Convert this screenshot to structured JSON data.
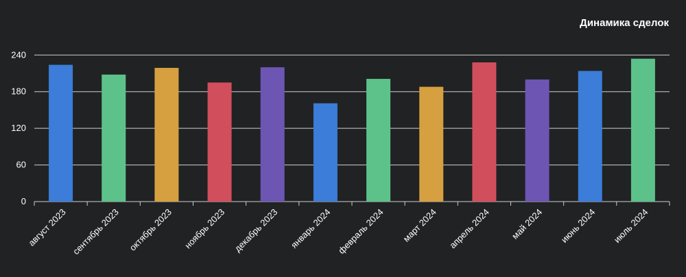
{
  "chart_data": {
    "type": "bar",
    "title": "Динамика сделок",
    "categories": [
      "август 2023",
      "сентябрь 2023",
      "октябрь 2023",
      "ноябрь 2023",
      "декабрь 2023",
      "январь 2024",
      "февраль 2024",
      "март 2024",
      "апрель 2024",
      "май 2024",
      "июнь 2024",
      "июль 2024"
    ],
    "values": [
      224,
      208,
      219,
      195,
      220,
      161,
      201,
      188,
      228,
      200,
      214,
      234
    ],
    "colors": [
      "#3b7dd8",
      "#5cc28a",
      "#d6a040",
      "#d14f5c",
      "#6c55b3",
      "#3b7dd8",
      "#5cc28a",
      "#d6a040",
      "#d14f5c",
      "#6c55b3",
      "#3b7dd8",
      "#5cc28a"
    ],
    "yticks": [
      0,
      60,
      120,
      180,
      240
    ],
    "ylim": [
      0,
      240
    ],
    "grid": true,
    "xlabel": "",
    "ylabel": ""
  }
}
